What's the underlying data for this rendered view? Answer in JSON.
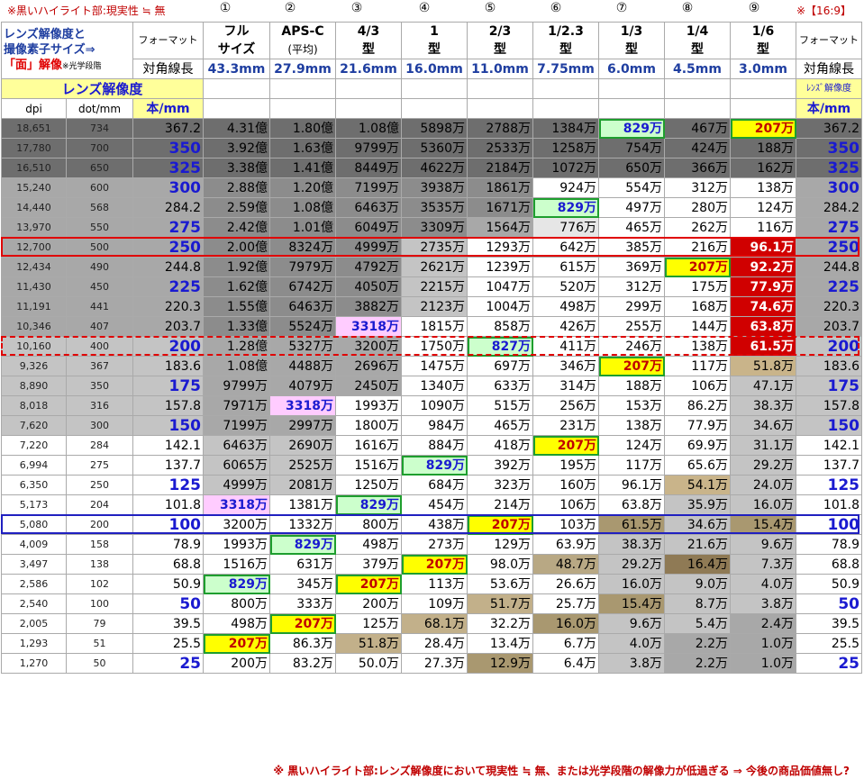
{
  "top": {
    "note_left": "※黒いハイライト部:現実性 ≒ 無",
    "note_right": "※【16:9】",
    "numbers": [
      "①",
      "②",
      "③",
      "④",
      "⑤",
      "⑥",
      "⑦",
      "⑧",
      "⑨"
    ]
  },
  "header": {
    "title_line1": "レンズ解像度と",
    "title_line2": "撮像素子サイズ⇒",
    "title_line3a": "「面」解像",
    "title_line3b": "※光学段階",
    "format_label": "フォーマット",
    "diag_label": "対角線長",
    "formats": [
      {
        "name1": "フル",
        "name2": "サイズ",
        "diag": "43.3mm"
      },
      {
        "name1": "APS-C",
        "name2": "(平均)",
        "diag": "27.9mm"
      },
      {
        "name1": "4/3",
        "name2": "型",
        "diag": "21.6mm"
      },
      {
        "name1": "1",
        "name2": "型",
        "diag": "16.0mm"
      },
      {
        "name1": "2/3",
        "name2": "型",
        "diag": "11.0mm"
      },
      {
        "name1": "1/2.3",
        "name2": "型",
        "diag": "7.75mm"
      },
      {
        "name1": "1/3",
        "name2": "型",
        "diag": "6.0mm"
      },
      {
        "name1": "1/4",
        "name2": "型",
        "diag": "4.5mm"
      },
      {
        "name1": "1/6",
        "name2": "型",
        "diag": "3.0mm"
      }
    ],
    "lens_res_label": "レンズ解像度",
    "lens_res_small": "ﾚﾝｽﾞ解像度",
    "col_dpi": "dpi",
    "col_dotmm": "dot/mm",
    "col_lines": "本/mm"
  },
  "rows": [
    {
      "dpi": "18,651",
      "dot": "734",
      "lines": "367.2",
      "big": false,
      "cells": [
        "4.31億",
        "1.80億",
        "1.08億",
        "5898万",
        "2788万",
        "1384万",
        "829万",
        "467万",
        "207万"
      ]
    },
    {
      "dpi": "17,780",
      "dot": "700",
      "lines": "350",
      "big": true,
      "cells": [
        "3.92億",
        "1.63億",
        "9799万",
        "5360万",
        "2533万",
        "1258万",
        "754万",
        "424万",
        "188万"
      ]
    },
    {
      "dpi": "16,510",
      "dot": "650",
      "lines": "325",
      "big": true,
      "cells": [
        "3.38億",
        "1.41億",
        "8449万",
        "4622万",
        "2184万",
        "1072万",
        "650万",
        "366万",
        "162万"
      ]
    },
    {
      "dpi": "15,240",
      "dot": "600",
      "lines": "300",
      "big": true,
      "cells": [
        "2.88億",
        "1.20億",
        "7199万",
        "3938万",
        "1861万",
        "924万",
        "554万",
        "312万",
        "138万"
      ]
    },
    {
      "dpi": "14,440",
      "dot": "568",
      "lines": "284.2",
      "big": false,
      "cells": [
        "2.59億",
        "1.08億",
        "6463万",
        "3535万",
        "1671万",
        "829万",
        "497万",
        "280万",
        "124万"
      ]
    },
    {
      "dpi": "13,970",
      "dot": "550",
      "lines": "275",
      "big": true,
      "cells": [
        "2.42億",
        "1.01億",
        "6049万",
        "3309万",
        "1564万",
        "776万",
        "465万",
        "262万",
        "116万"
      ]
    },
    {
      "dpi": "12,700",
      "dot": "500",
      "lines": "250",
      "big": true,
      "cells": [
        "2.00億",
        "8324万",
        "4999万",
        "2735万",
        "1293万",
        "642万",
        "385万",
        "216万",
        "96.1万"
      ]
    },
    {
      "dpi": "12,434",
      "dot": "490",
      "lines": "244.8",
      "big": false,
      "cells": [
        "1.92億",
        "7979万",
        "4792万",
        "2621万",
        "1239万",
        "615万",
        "369万",
        "207万",
        "92.2万"
      ]
    },
    {
      "dpi": "11,430",
      "dot": "450",
      "lines": "225",
      "big": true,
      "cells": [
        "1.62億",
        "6742万",
        "4050万",
        "2215万",
        "1047万",
        "520万",
        "312万",
        "175万",
        "77.9万"
      ]
    },
    {
      "dpi": "11,191",
      "dot": "441",
      "lines": "220.3",
      "big": false,
      "cells": [
        "1.55億",
        "6463万",
        "3882万",
        "2123万",
        "1004万",
        "498万",
        "299万",
        "168万",
        "74.6万"
      ]
    },
    {
      "dpi": "10,346",
      "dot": "407",
      "lines": "203.7",
      "big": false,
      "cells": [
        "1.33億",
        "5524万",
        "3318万",
        "1815万",
        "858万",
        "426万",
        "255万",
        "144万",
        "63.8万"
      ]
    },
    {
      "dpi": "10,160",
      "dot": "400",
      "lines": "200",
      "big": true,
      "cells": [
        "1.28億",
        "5327万",
        "3200万",
        "1750万",
        "827万",
        "411万",
        "246万",
        "138万",
        "61.5万"
      ]
    },
    {
      "dpi": "9,326",
      "dot": "367",
      "lines": "183.6",
      "big": false,
      "cells": [
        "1.08億",
        "4488万",
        "2696万",
        "1475万",
        "697万",
        "346万",
        "207万",
        "117万",
        "51.8万"
      ]
    },
    {
      "dpi": "8,890",
      "dot": "350",
      "lines": "175",
      "big": true,
      "cells": [
        "9799万",
        "4079万",
        "2450万",
        "1340万",
        "633万",
        "314万",
        "188万",
        "106万",
        "47.1万"
      ]
    },
    {
      "dpi": "8,018",
      "dot": "316",
      "lines": "157.8",
      "big": false,
      "cells": [
        "7971万",
        "3318万",
        "1993万",
        "1090万",
        "515万",
        "256万",
        "153万",
        "86.2万",
        "38.3万"
      ]
    },
    {
      "dpi": "7,620",
      "dot": "300",
      "lines": "150",
      "big": true,
      "cells": [
        "7199万",
        "2997万",
        "1800万",
        "984万",
        "465万",
        "231万",
        "138万",
        "77.9万",
        "34.6万"
      ]
    },
    {
      "dpi": "7,220",
      "dot": "284",
      "lines": "142.1",
      "big": false,
      "cells": [
        "6463万",
        "2690万",
        "1616万",
        "884万",
        "418万",
        "207万",
        "124万",
        "69.9万",
        "31.1万"
      ]
    },
    {
      "dpi": "6,994",
      "dot": "275",
      "lines": "137.7",
      "big": false,
      "cells": [
        "6065万",
        "2525万",
        "1516万",
        "829万",
        "392万",
        "195万",
        "117万",
        "65.6万",
        "29.2万"
      ]
    },
    {
      "dpi": "6,350",
      "dot": "250",
      "lines": "125",
      "big": true,
      "cells": [
        "4999万",
        "2081万",
        "1250万",
        "684万",
        "323万",
        "160万",
        "96.1万",
        "54.1万",
        "24.0万"
      ]
    },
    {
      "dpi": "5,173",
      "dot": "204",
      "lines": "101.8",
      "big": false,
      "cells": [
        "3318万",
        "1381万",
        "829万",
        "454万",
        "214万",
        "106万",
        "63.8万",
        "35.9万",
        "16.0万"
      ]
    },
    {
      "dpi": "5,080",
      "dot": "200",
      "lines": "100",
      "big": true,
      "cells": [
        "3200万",
        "1332万",
        "800万",
        "438万",
        "207万",
        "103万",
        "61.5万",
        "34.6万",
        "15.4万"
      ]
    },
    {
      "dpi": "4,009",
      "dot": "158",
      "lines": "78.9",
      "big": false,
      "cells": [
        "1993万",
        "829万",
        "498万",
        "273万",
        "129万",
        "63.9万",
        "38.3万",
        "21.6万",
        "9.6万"
      ]
    },
    {
      "dpi": "3,497",
      "dot": "138",
      "lines": "68.8",
      "big": false,
      "cells": [
        "1516万",
        "631万",
        "379万",
        "207万",
        "98.0万",
        "48.7万",
        "29.2万",
        "16.4万",
        "7.3万"
      ]
    },
    {
      "dpi": "2,586",
      "dot": "102",
      "lines": "50.9",
      "big": false,
      "cells": [
        "829万",
        "345万",
        "207万",
        "113万",
        "53.6万",
        "26.6万",
        "16.0万",
        "9.0万",
        "4.0万"
      ]
    },
    {
      "dpi": "2,540",
      "dot": "100",
      "lines": "50",
      "big": true,
      "cells": [
        "800万",
        "333万",
        "200万",
        "109万",
        "51.7万",
        "25.7万",
        "15.4万",
        "8.7万",
        "3.8万"
      ]
    },
    {
      "dpi": "2,005",
      "dot": "79",
      "lines": "39.5",
      "big": false,
      "cells": [
        "498万",
        "207万",
        "125万",
        "68.1万",
        "32.2万",
        "16.0万",
        "9.6万",
        "5.4万",
        "2.4万"
      ]
    },
    {
      "dpi": "1,293",
      "dot": "51",
      "lines": "25.5",
      "big": false,
      "cells": [
        "207万",
        "86.3万",
        "51.8万",
        "28.4万",
        "13.4万",
        "6.7万",
        "4.0万",
        "2.2万",
        "1.0万"
      ]
    },
    {
      "dpi": "1,270",
      "dot": "50",
      "lines": "25",
      "big": true,
      "cells": [
        "200万",
        "83.2万",
        "50.0万",
        "27.3万",
        "12.9万",
        "6.4万",
        "3.8万",
        "2.2万",
        "1.0万"
      ]
    }
  ],
  "bottom": {
    "note": "※ 黒いハイライト部:レンズ解像度において現実性 ≒ 無、または光学段階の解像力が低過ぎる ⇒ 今後の商品価値無し?"
  },
  "colors": {
    "accent_blue": "#1a1ad0",
    "accent_red": "#e00000",
    "highlight_yellow": "#ffff00",
    "highlight_green": "#ccffcc",
    "highlight_pink": "#ffccff",
    "highlight_red": "#d00000"
  }
}
